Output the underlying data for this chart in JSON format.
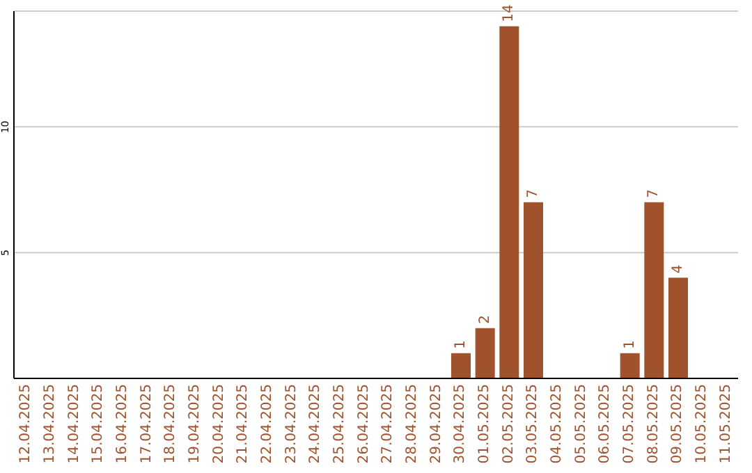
{
  "chart_data": {
    "type": "bar",
    "categories": [
      "12.04.2025",
      "13.04.2025",
      "14.04.2025",
      "15.04.2025",
      "16.04.2025",
      "17.04.2025",
      "18.04.2025",
      "19.04.2025",
      "20.04.2025",
      "21.04.2025",
      "22.04.2025",
      "23.04.2025",
      "24.04.2025",
      "25.04.2025",
      "26.04.2025",
      "27.04.2025",
      "28.04.2025",
      "29.04.2025",
      "30.04.2025",
      "01.05.2025",
      "02.05.2025",
      "03.05.2025",
      "04.05.2025",
      "05.05.2025",
      "06.05.2025",
      "07.05.2025",
      "08.05.2025",
      "09.05.2025",
      "10.05.2025",
      "11.05.2025"
    ],
    "values": [
      0,
      0,
      0,
      0,
      0,
      0,
      0,
      0,
      0,
      0,
      0,
      0,
      0,
      0,
      0,
      0,
      0,
      0,
      1,
      2,
      14,
      7,
      0,
      0,
      0,
      1,
      7,
      4,
      0,
      0
    ],
    "value_labels": [
      null,
      null,
      null,
      null,
      null,
      null,
      null,
      null,
      null,
      null,
      null,
      null,
      null,
      null,
      null,
      null,
      null,
      null,
      "1",
      "2",
      "14",
      "7",
      null,
      null,
      null,
      "1",
      "7",
      "4",
      null,
      null
    ],
    "color": "#a0522d",
    "ylim": [
      0,
      14.6
    ],
    "yticks": [
      5,
      10
    ],
    "grid": "y",
    "legend": false
  }
}
